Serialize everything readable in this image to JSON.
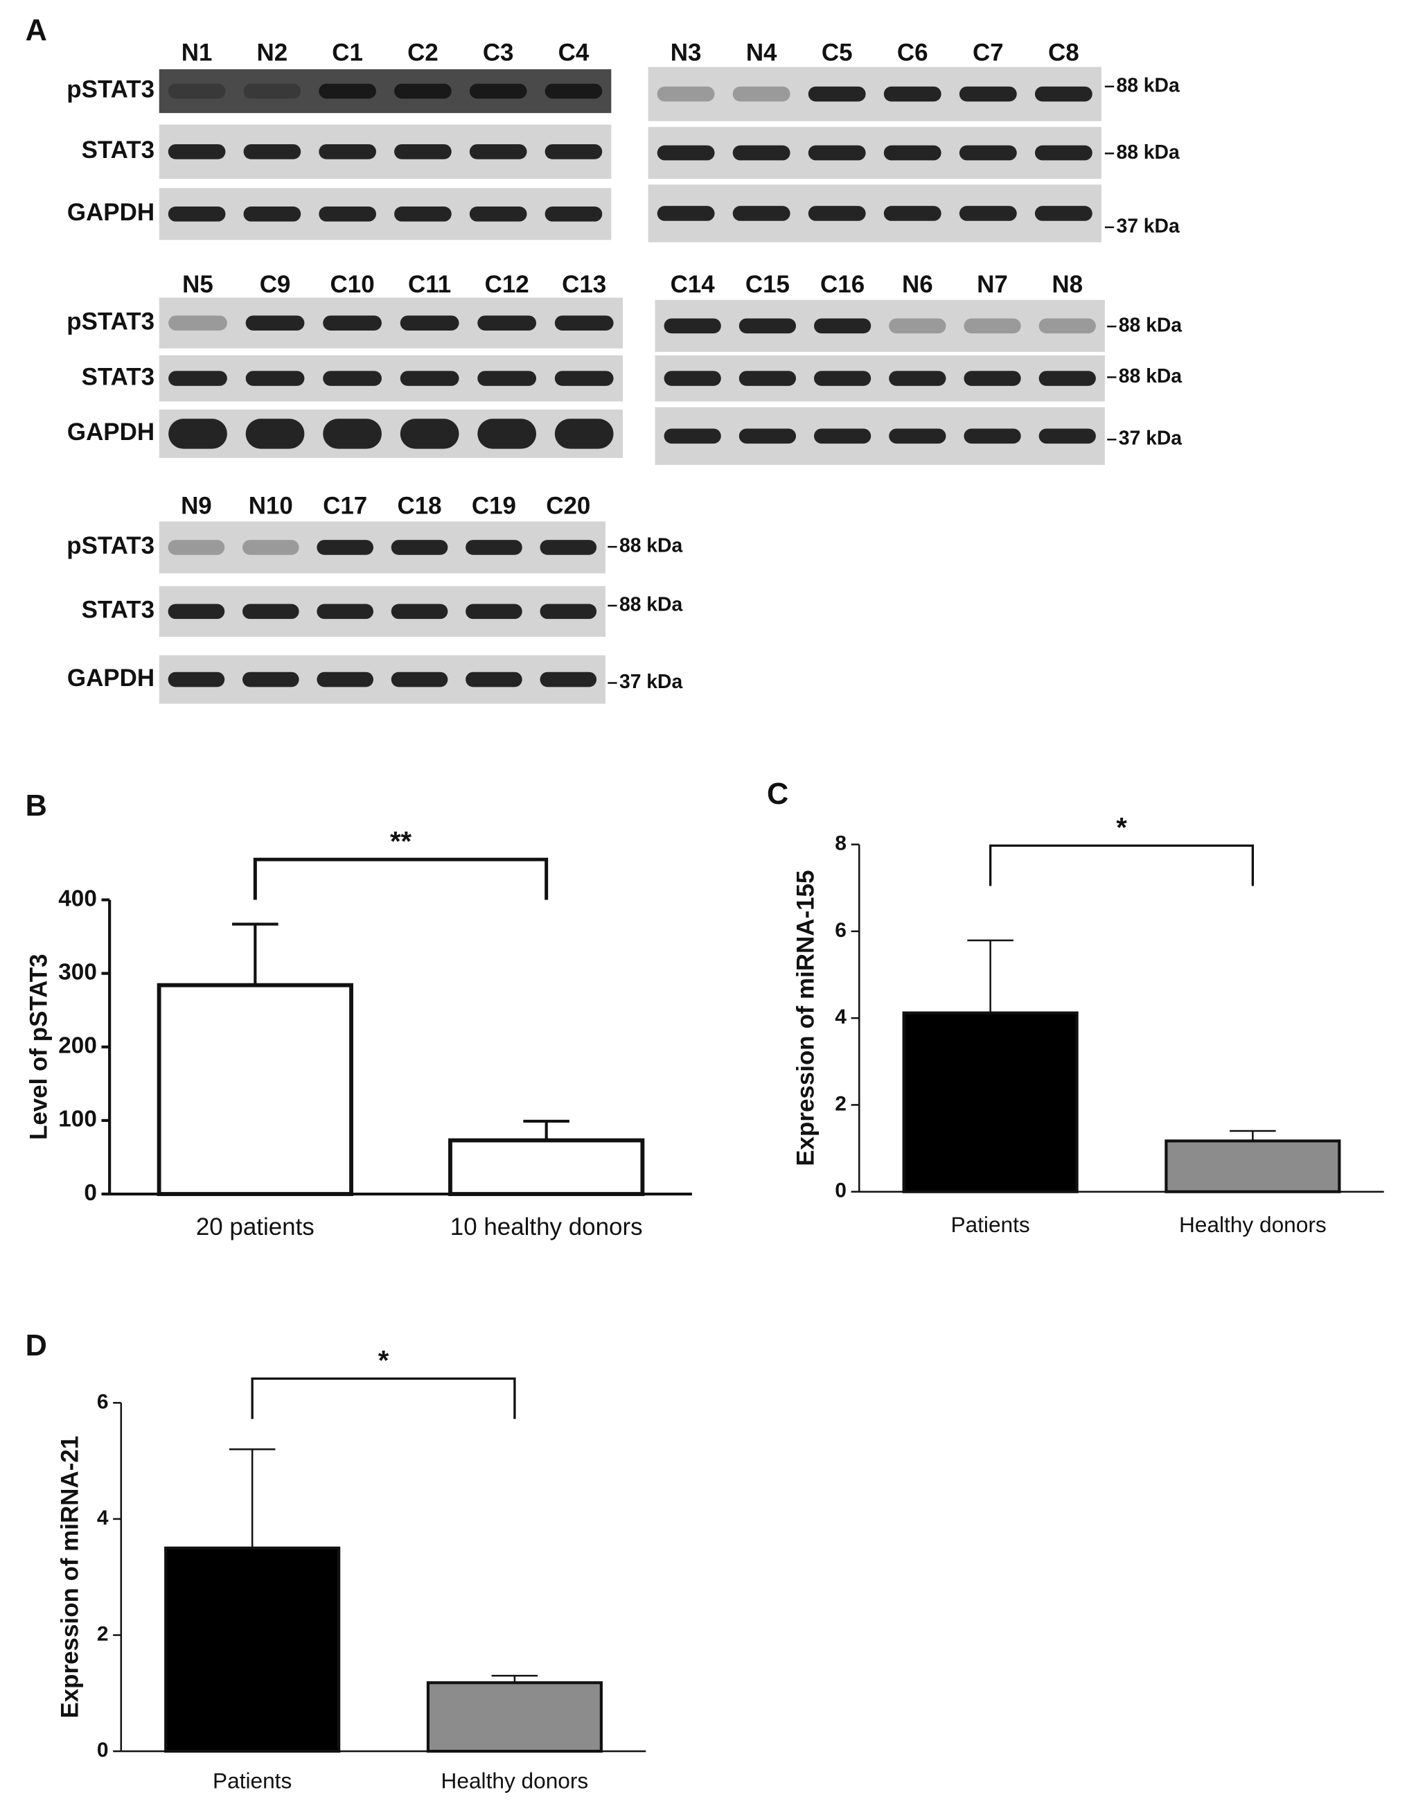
{
  "panel_a": {
    "label": "A",
    "blots": [
      {
        "lanes": [
          "N1",
          "N2",
          "C1",
          "C2",
          "C3",
          "C4"
        ],
        "row_labels": [
          "pSTAT3",
          "STAT3",
          "GAPDH"
        ]
      },
      {
        "lanes": [
          "N3",
          "N4",
          "C5",
          "C6",
          "C7",
          "C8"
        ],
        "markers": [
          "88 kDa",
          "88 kDa",
          "37 kDa"
        ]
      },
      {
        "lanes": [
          "N5",
          "C9",
          "C10",
          "C11",
          "C12",
          "C13"
        ],
        "row_labels": [
          "pSTAT3",
          "STAT3",
          "GAPDH"
        ]
      },
      {
        "lanes": [
          "C14",
          "C15",
          "C16",
          "N6",
          "N7",
          "N8"
        ],
        "markers": [
          "88 kDa",
          "88 kDa",
          "37 kDa"
        ]
      },
      {
        "lanes": [
          "N9",
          "N10",
          "C17",
          "C18",
          "C19",
          "C20"
        ],
        "row_labels": [
          "pSTAT3",
          "STAT3",
          "GAPDH"
        ],
        "markers": [
          "88 kDa",
          "88 kDa",
          "37 kDa"
        ]
      }
    ]
  },
  "chart_data": [
    {
      "type": "bar",
      "panel": "B",
      "y_label": "Level of pSTAT3",
      "categories": [
        "20 patients",
        "10 healthy donors"
      ],
      "values": [
        284,
        73
      ],
      "errors": [
        83,
        26
      ],
      "colors": [
        "#ffffff",
        "#ffffff"
      ],
      "ylim": [
        0,
        400
      ],
      "yticks": [
        0,
        100,
        200,
        300,
        400
      ],
      "annotation": "**"
    },
    {
      "type": "bar",
      "panel": "C",
      "y_label": "Expression of miRNA-155",
      "categories": [
        "Patients",
        "Healthy donors"
      ],
      "values": [
        4.12,
        1.17
      ],
      "errors": [
        1.67,
        0.23
      ],
      "colors": [
        "#000000",
        "#8c8c8c"
      ],
      "ylim": [
        0,
        8
      ],
      "yticks": [
        0,
        2,
        4,
        6,
        8
      ],
      "annotation": "*"
    },
    {
      "type": "bar",
      "panel": "D",
      "y_label": "Expression of miRNA-21",
      "categories": [
        "Patients",
        "Healthy donors"
      ],
      "values": [
        3.5,
        1.18
      ],
      "errors": [
        1.7,
        0.12
      ],
      "colors": [
        "#000000",
        "#8c8c8c"
      ],
      "ylim": [
        0,
        6
      ],
      "yticks": [
        0,
        2,
        4,
        6
      ],
      "annotation": "*"
    }
  ]
}
